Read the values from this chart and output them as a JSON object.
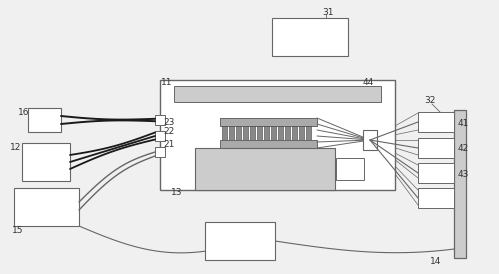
{
  "bg_color": "#f0f0f0",
  "lc": "#666666",
  "dlc": "#1a1a1a",
  "white": "#ffffff",
  "lgray": "#cccccc",
  "mgray": "#aaaaaa",
  "dgray": "#888888"
}
